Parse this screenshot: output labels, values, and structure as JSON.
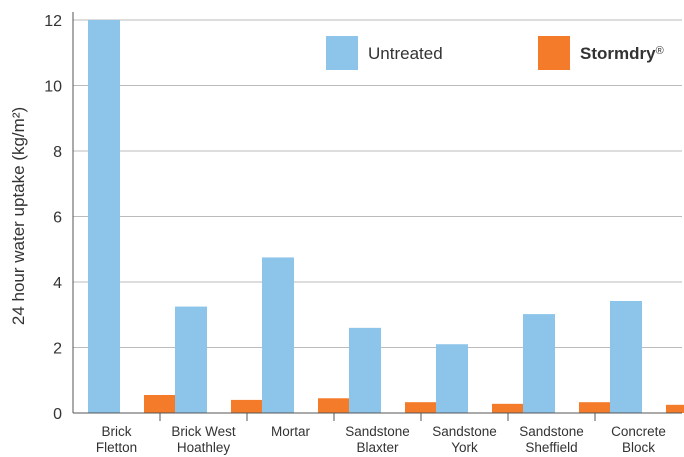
{
  "chart_data": {
    "type": "bar",
    "title": "",
    "ylabel": "24 hour water uptake (kg/m²)",
    "xlabel": "",
    "ylim": [
      0,
      12
    ],
    "yticks": [
      0,
      2,
      4,
      6,
      8,
      10,
      12
    ],
    "grid": true,
    "legend_position": "top-right",
    "categories": [
      [
        "Brick",
        "Fletton"
      ],
      [
        "Brick West",
        "Hoathley"
      ],
      [
        "Mortar"
      ],
      [
        "Sandstone",
        "Blaxter"
      ],
      [
        "Sandstone",
        "York"
      ],
      [
        "Sandstone",
        "Sheffield"
      ],
      [
        "Concrete",
        "Block"
      ]
    ],
    "series": [
      {
        "name": "Untreated",
        "color": "#8dc5ea",
        "values": [
          12,
          3.25,
          4.75,
          2.6,
          2.1,
          3.02,
          3.42
        ]
      },
      {
        "name": "Stormdry",
        "name_suffix": "®",
        "color": "#f47b2a",
        "values": [
          0.55,
          0.4,
          0.45,
          0.33,
          0.28,
          0.33,
          0.25
        ]
      }
    ]
  }
}
